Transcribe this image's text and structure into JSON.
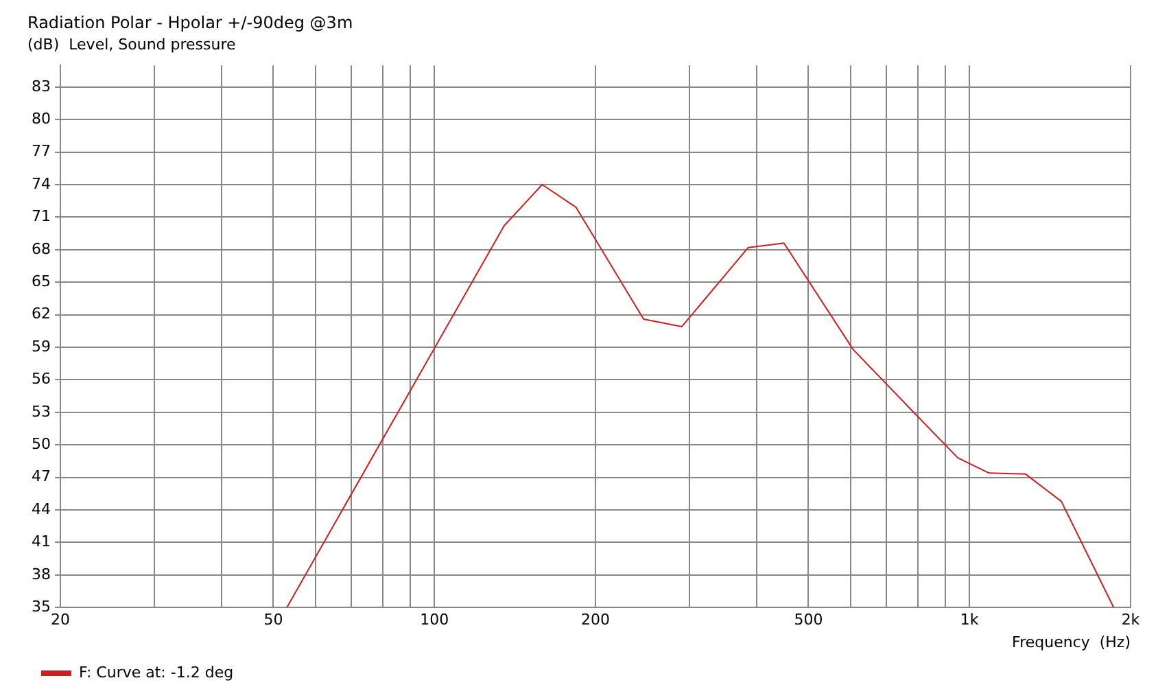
{
  "chart_data": {
    "type": "line",
    "title": "Radiation Polar - Hpolar +/-90deg @3m",
    "ylabel": "(dB)  Level, Sound pressure",
    "xlabel": "Frequency  (Hz)",
    "x": [
      53,
      135,
      159,
      184,
      246,
      290,
      386,
      450,
      606,
      783,
      951,
      1088,
      1273,
      1484,
      1860
    ],
    "series": [
      {
        "name": "F: Curve at: -1.2 deg",
        "color": "#cc1f1f",
        "values": [
          35,
          70.2,
          74.0,
          71.9,
          61.6,
          60.9,
          68.2,
          68.6,
          58.8,
          53.1,
          48.8,
          47.4,
          47.3,
          44.8,
          35
        ]
      }
    ],
    "log": "x",
    "xlim": [
      20,
      2000
    ],
    "xticks": [
      20,
      {
        "value": 30,
        "label": null
      },
      {
        "value": 40,
        "label": null
      },
      50,
      {
        "value": 60,
        "label": null
      },
      {
        "value": 70,
        "label": null
      },
      {
        "value": 80,
        "label": null
      },
      {
        "value": 90,
        "label": null
      },
      100,
      200,
      {
        "value": 300,
        "label": null
      },
      {
        "value": 400,
        "label": null
      },
      500,
      {
        "value": 600,
        "label": null
      },
      {
        "value": 700,
        "label": null
      },
      {
        "value": 800,
        "label": null
      },
      {
        "value": 900,
        "label": null
      },
      {
        "value": 1000,
        "label": "1k"
      },
      {
        "value": 2000,
        "label": "2k"
      }
    ],
    "ylim": [
      35,
      85
    ],
    "yticks": [
      35,
      38,
      41,
      44,
      47,
      50,
      53,
      56,
      59,
      62,
      65,
      68,
      71,
      74,
      77,
      80,
      83
    ],
    "grid": true,
    "legend": "bottom left",
    "marker": "none",
    "line_style": "solid"
  }
}
